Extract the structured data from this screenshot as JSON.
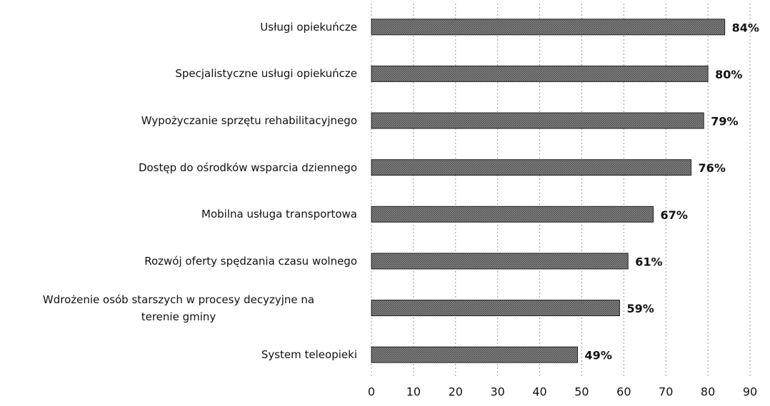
{
  "chart_data": {
    "type": "bar",
    "orientation": "horizontal",
    "categories": [
      "Usługi opiekuńcze",
      "Specjalistyczne usługi opiekuńcze",
      "Wypożyczanie sprzętu rehabilitacyjnego",
      "Dostęp do ośrodków wsparcia dziennego",
      "Mobilna usługa transportowa",
      "Rozwój oferty spędzania czasu wolnego",
      "Wdrożenie osób starszych w procesy decyzyjne na\nterenie gminy",
      "System teleopieki"
    ],
    "values": [
      84,
      80,
      79,
      76,
      67,
      61,
      59,
      49
    ],
    "value_labels": [
      "84%",
      "80%",
      "79%",
      "76%",
      "67%",
      "61%",
      "59%",
      "49%"
    ],
    "color": "#7a7a7a",
    "xlim": [
      0,
      90
    ],
    "xticks": [
      0,
      10,
      20,
      30,
      40,
      50,
      60,
      70,
      80,
      90
    ],
    "grid": true
  }
}
